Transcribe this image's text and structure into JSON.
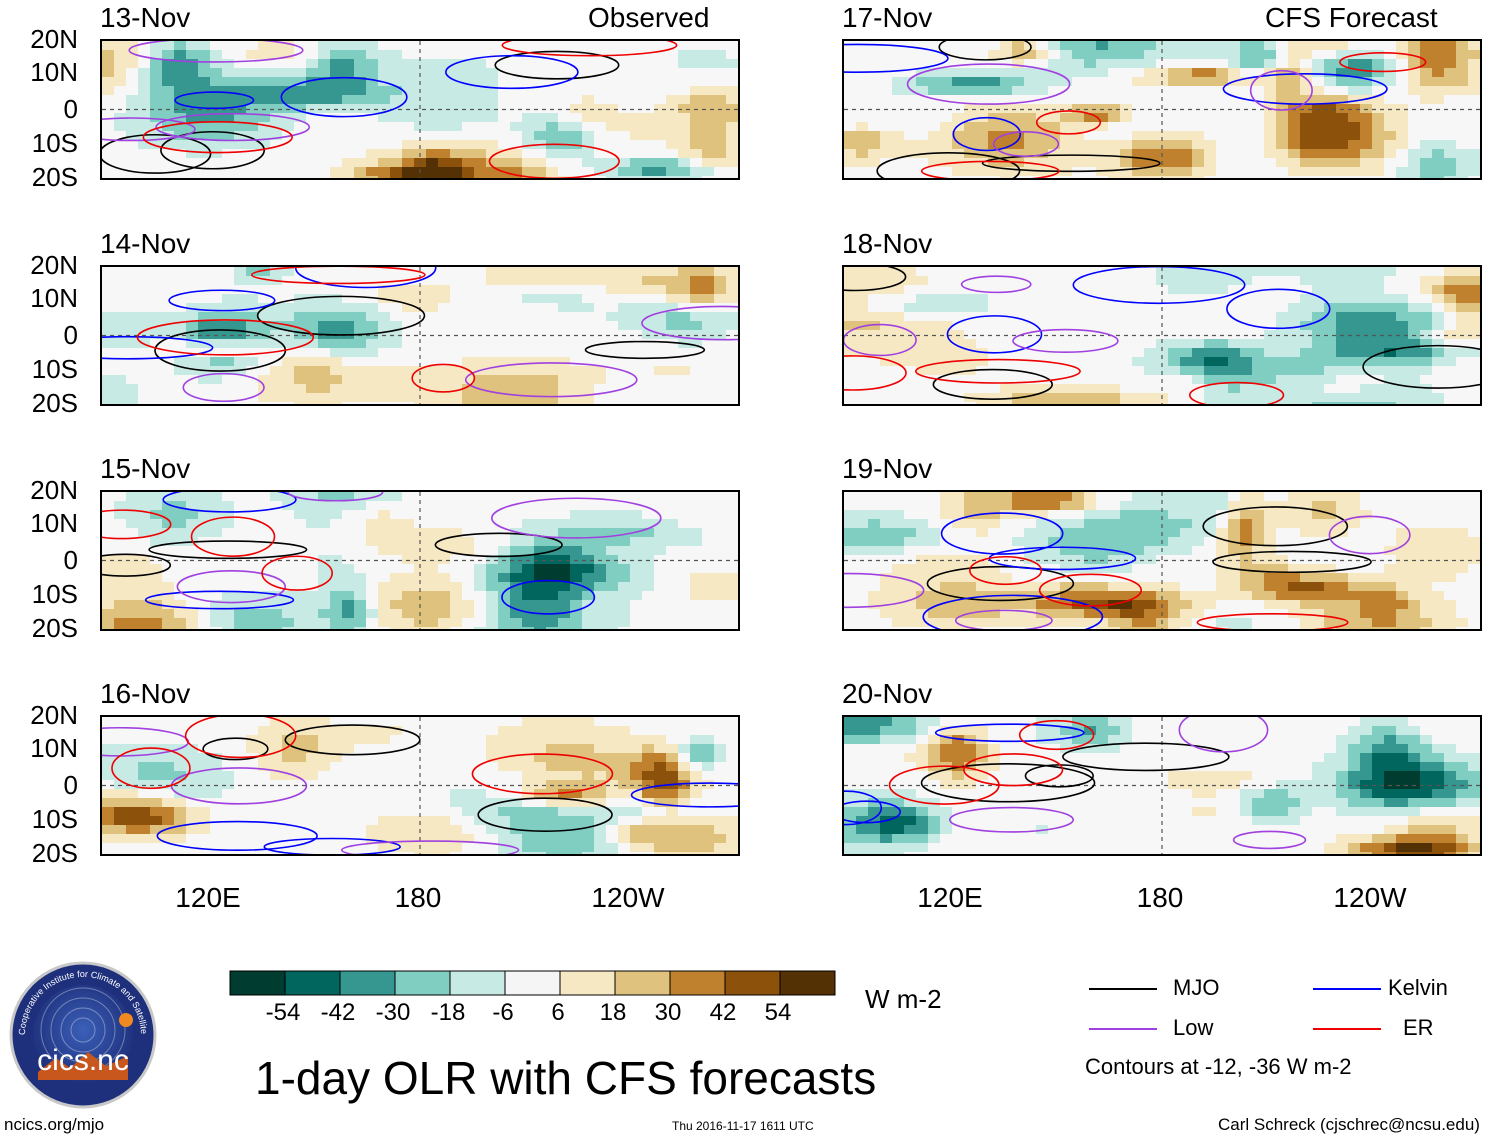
{
  "figure": {
    "main_title": "1-day OLR with CFS forecasts",
    "observed_label": "Observed",
    "forecast_label": "CFS Forecast",
    "units": "W m-2",
    "footer_left": "ncics.org/mjo",
    "footer_center": "Thu 2016-11-17 1611 UTC",
    "footer_right": "Carl Schreck (cjschrec@ncsu.edu)",
    "logo_text": "cics.nc",
    "logo_ring_text": "Cooperative Institute for Climate and Satellites"
  },
  "legend": {
    "items": [
      {
        "name": "MJO",
        "color": "#000000"
      },
      {
        "name": "Kelvin",
        "color": "#0000ff"
      },
      {
        "name": "Low",
        "color": "#a040e0"
      },
      {
        "name": "ER",
        "color": "#ee0000"
      }
    ],
    "contours_note": "Contours at -12, -36 W m-2"
  },
  "colorbar": {
    "levels": [
      "-54",
      "-42",
      "-30",
      "-18",
      "-6",
      "6",
      "18",
      "30",
      "42",
      "54"
    ],
    "colors": [
      "#003c30",
      "#01665e",
      "#35978f",
      "#80cdc1",
      "#c7eae5",
      "#f5f5f5",
      "#f6e8c3",
      "#dfc27d",
      "#bf812d",
      "#8c510a",
      "#543005"
    ]
  },
  "chart_data": {
    "type": "heatmap",
    "variable": "OLR anomaly",
    "lat_ticks": [
      "20N",
      "10N",
      "0",
      "10S",
      "20S"
    ],
    "lat_range": [
      -20,
      20
    ],
    "lon_ticks": [
      "120E",
      "180",
      "120W"
    ],
    "lon_range_deg_east": [
      90,
      270
    ],
    "panels": [
      {
        "date": "13-Nov",
        "kind": "observed"
      },
      {
        "date": "14-Nov",
        "kind": "observed"
      },
      {
        "date": "15-Nov",
        "kind": "observed"
      },
      {
        "date": "16-Nov",
        "kind": "observed"
      },
      {
        "date": "17-Nov",
        "kind": "forecast"
      },
      {
        "date": "18-Nov",
        "kind": "forecast"
      },
      {
        "date": "19-Nov",
        "kind": "forecast"
      },
      {
        "date": "20-Nov",
        "kind": "forecast"
      }
    ]
  }
}
